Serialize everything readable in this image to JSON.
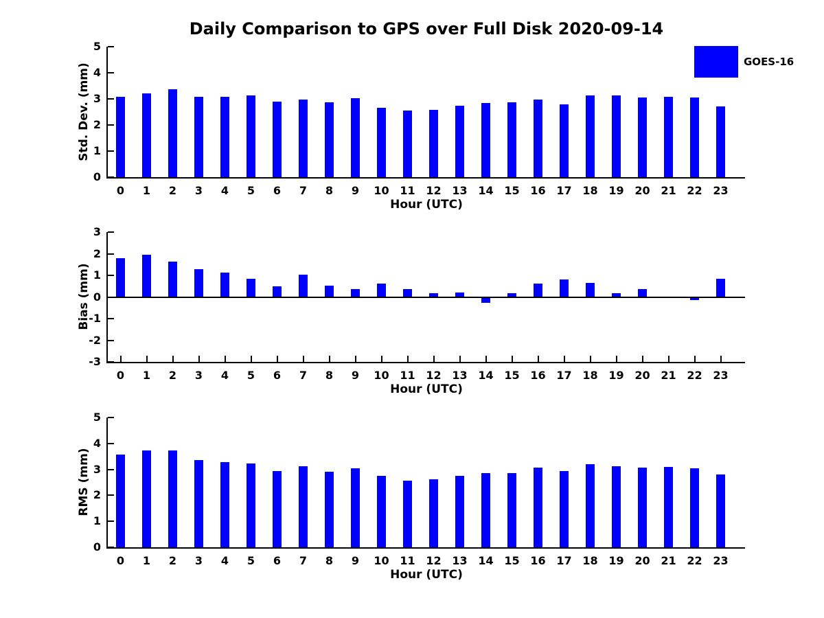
{
  "title": "Daily Comparison to GPS over Full Disk 2020-09-14",
  "legend": {
    "label": "GOES-16",
    "color": "#0000FF",
    "position": "top-right"
  },
  "colors": {
    "bar": "#0000FF",
    "axis": "#000000",
    "text": "#000000",
    "background": "#FFFFFF"
  },
  "chart_data": [
    {
      "type": "bar",
      "id": "std-dev",
      "ylabel": "Std. Dev. (mm)",
      "xlabel": "Hour (UTC)",
      "ylim": [
        0,
        5
      ],
      "yticks": [
        0,
        1,
        2,
        3,
        4,
        5
      ],
      "grid": false,
      "legend_entry": "GOES-16",
      "categories": [
        "0",
        "1",
        "2",
        "3",
        "4",
        "5",
        "6",
        "7",
        "8",
        "9",
        "10",
        "11",
        "12",
        "13",
        "14",
        "15",
        "16",
        "17",
        "18",
        "19",
        "20",
        "21",
        "22",
        "23"
      ],
      "values": [
        3.08,
        3.2,
        3.38,
        3.08,
        3.08,
        3.12,
        2.9,
        2.97,
        2.87,
        3.03,
        2.67,
        2.54,
        2.58,
        2.74,
        2.85,
        2.88,
        2.98,
        2.8,
        3.14,
        3.13,
        3.06,
        3.09,
        3.06,
        2.7
      ]
    },
    {
      "type": "bar",
      "id": "bias",
      "ylabel": "Bias (mm)",
      "xlabel": "Hour (UTC)",
      "ylim": [
        -3,
        3
      ],
      "yticks": [
        -3,
        -2,
        -1,
        0,
        1,
        2,
        3
      ],
      "zero_line": true,
      "grid": false,
      "legend_entry": "GOES-16",
      "categories": [
        "0",
        "1",
        "2",
        "3",
        "4",
        "5",
        "6",
        "7",
        "8",
        "9",
        "10",
        "11",
        "12",
        "13",
        "14",
        "15",
        "16",
        "17",
        "18",
        "19",
        "20",
        "21",
        "22",
        "23"
      ],
      "values": [
        1.8,
        1.95,
        1.62,
        1.3,
        1.13,
        0.84,
        0.5,
        1.02,
        0.52,
        0.35,
        0.63,
        0.38,
        0.17,
        0.22,
        -0.26,
        0.17,
        0.63,
        0.8,
        0.66,
        0.17,
        0.35,
        0.02,
        -0.13,
        0.83
      ]
    },
    {
      "type": "bar",
      "id": "rms",
      "ylabel": "RMS (mm)",
      "xlabel": "Hour (UTC)",
      "ylim": [
        0,
        5
      ],
      "yticks": [
        0,
        1,
        2,
        3,
        4,
        5
      ],
      "grid": false,
      "legend_entry": "GOES-16",
      "categories": [
        "0",
        "1",
        "2",
        "3",
        "4",
        "5",
        "6",
        "7",
        "8",
        "9",
        "10",
        "11",
        "12",
        "13",
        "14",
        "15",
        "16",
        "17",
        "18",
        "19",
        "20",
        "21",
        "22",
        "23"
      ],
      "values": [
        3.58,
        3.72,
        3.72,
        3.36,
        3.28,
        3.23,
        2.94,
        3.12,
        2.92,
        3.05,
        2.76,
        2.57,
        2.61,
        2.76,
        2.86,
        2.86,
        3.06,
        2.94,
        3.21,
        3.13,
        3.08,
        3.1,
        3.05,
        2.81
      ]
    }
  ]
}
